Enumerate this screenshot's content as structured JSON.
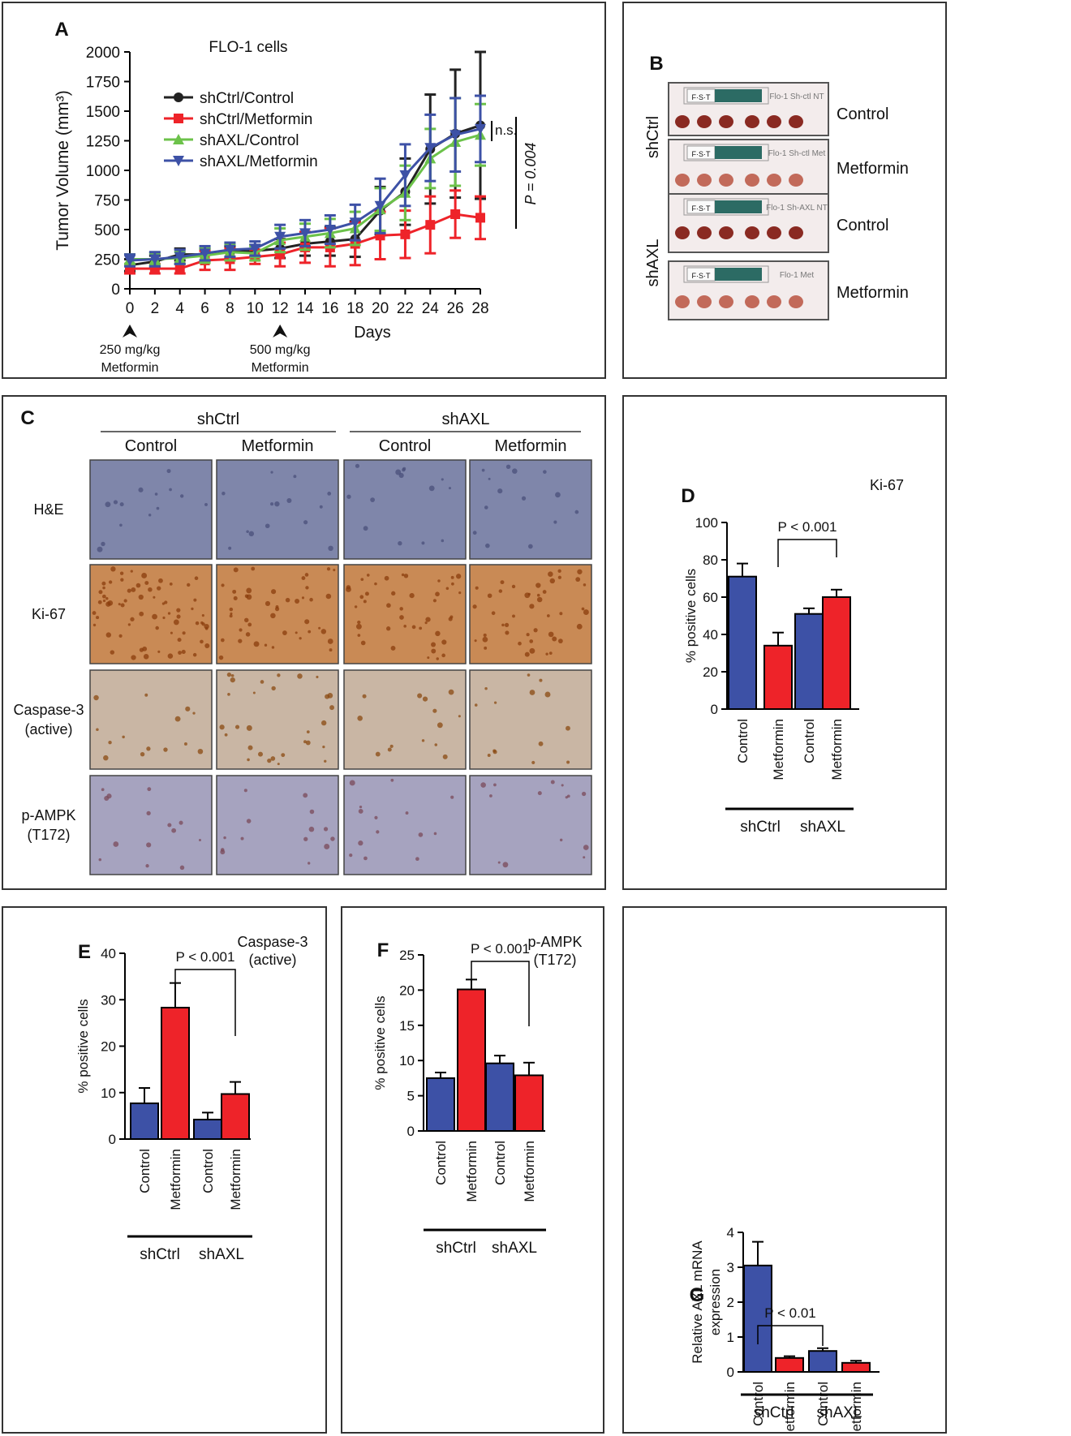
{
  "colors": {
    "blue": "#3d51a6",
    "red": "#ee2329",
    "green": "#6cc24a",
    "black": "#222222",
    "he_tissue": "#7f86aa",
    "ki_tissue": "#c98a55",
    "casp_tissue": "#c9b6a4",
    "ampk_tissue": "#a6a3bf"
  },
  "panel_a": {
    "letter": "A",
    "cell_line": "FLO-1 cells",
    "ns_label": "n.s.",
    "p_label": "P = 0.004",
    "dose1": [
      "250 mg/kg",
      "Metformin"
    ],
    "dose2": [
      "500 mg/kg",
      "Metformin"
    ],
    "dose1_day": 0,
    "dose2_day": 12
  },
  "panel_b": {
    "letter": "B",
    "group_labels": [
      "shCtrl",
      "shAXL"
    ],
    "row_labels": [
      "Control",
      "Metformin",
      "Control",
      "Metformin"
    ],
    "sticker_text": [
      "Flo-1 Sh-ctl NT",
      "Flo-1 Sh-ctl Met",
      "Flo-1 Sh-AXL NT",
      "Flo-1 Met"
    ],
    "ruler_text": [
      "F·S·T",
      "F·S·T",
      "F·S·T",
      "F·S·T"
    ],
    "tumor_counts": [
      6,
      6,
      6,
      6
    ]
  },
  "panel_c": {
    "letter": "C",
    "groups": [
      "shCtrl",
      "shAXL"
    ],
    "columns": [
      "Control",
      "Metformin",
      "Control",
      "Metformin"
    ],
    "stains": [
      "H&E",
      "Ki-67",
      "Caspase-3\n(active)",
      "p-AMPK\n(T172)"
    ]
  },
  "chart_data": [
    {
      "id": "A",
      "type": "line",
      "title": "FLO-1 cells",
      "xlabel": "Days",
      "ylabel": "Tumor Volume (mm³)",
      "xlim": [
        0,
        28
      ],
      "ylim": [
        0,
        2000
      ],
      "x": [
        0,
        2,
        4,
        6,
        8,
        10,
        12,
        14,
        16,
        18,
        20,
        22,
        24,
        26,
        28
      ],
      "yticks": [
        0,
        250,
        500,
        750,
        1000,
        1250,
        1500,
        1750,
        2000
      ],
      "series": [
        {
          "name": "shCtrl/Control",
          "color": "#222222",
          "marker": "circle",
          "values": [
            200,
            230,
            290,
            290,
            310,
            320,
            340,
            380,
            400,
            420,
            660,
            820,
            1180,
            1310,
            1380
          ],
          "errors": [
            50,
            50,
            50,
            50,
            50,
            50,
            80,
            100,
            120,
            150,
            200,
            280,
            460,
            540,
            620
          ]
        },
        {
          "name": "shCtrl/Metformin",
          "color": "#ee2329",
          "marker": "square",
          "values": [
            170,
            170,
            170,
            240,
            250,
            270,
            290,
            350,
            350,
            380,
            450,
            460,
            540,
            630,
            600
          ],
          "errors": [
            40,
            40,
            40,
            80,
            90,
            60,
            100,
            130,
            160,
            180,
            200,
            200,
            240,
            200,
            180
          ]
        },
        {
          "name": "shAXL/Control",
          "color": "#6cc24a",
          "marker": "triangle-up",
          "values": [
            250,
            250,
            260,
            280,
            310,
            300,
            410,
            440,
            470,
            510,
            670,
            810,
            1100,
            1240,
            1300
          ],
          "errors": [
            40,
            50,
            50,
            60,
            70,
            60,
            100,
            110,
            120,
            140,
            180,
            230,
            250,
            370,
            260
          ]
        },
        {
          "name": "shAXL/Metformin",
          "color": "#3d51a6",
          "marker": "triangle-down",
          "values": [
            240,
            250,
            270,
            300,
            330,
            340,
            440,
            470,
            500,
            560,
            700,
            960,
            1190,
            1300,
            1350
          ],
          "errors": [
            50,
            60,
            60,
            60,
            60,
            60,
            100,
            110,
            120,
            150,
            230,
            260,
            280,
            310,
            280
          ]
        }
      ]
    },
    {
      "id": "D",
      "type": "bar",
      "title": "Ki-67",
      "ylabel": "% positive cells",
      "ylim": [
        0,
        100
      ],
      "yticks": [
        0,
        20,
        40,
        60,
        80,
        100
      ],
      "categories": [
        "Control",
        "Metformin",
        "Control",
        "Metformin"
      ],
      "groups": [
        "shCtrl",
        "shAXL"
      ],
      "values": [
        71,
        34,
        51,
        60
      ],
      "errors": [
        7,
        7,
        3,
        4
      ],
      "bar_colors": [
        "#3d51a6",
        "#ee2329",
        "#3d51a6",
        "#ee2329"
      ],
      "significance": {
        "from": 1,
        "to": 3,
        "label": "P < 0.001"
      }
    },
    {
      "id": "E",
      "type": "bar",
      "title": "Caspase-3\n(active)",
      "ylabel": "% positive cells",
      "ylim": [
        0,
        40
      ],
      "yticks": [
        0,
        10,
        20,
        30,
        40
      ],
      "categories": [
        "Control",
        "Metformin",
        "Control",
        "Metformin"
      ],
      "groups": [
        "shCtrl",
        "shAXL"
      ],
      "values": [
        7.7,
        28.3,
        4.2,
        9.7
      ],
      "errors": [
        3.3,
        5.3,
        1.5,
        2.6
      ],
      "bar_colors": [
        "#3d51a6",
        "#ee2329",
        "#3d51a6",
        "#ee2329"
      ],
      "significance": {
        "from": 1,
        "to": 3,
        "label": "P < 0.001"
      }
    },
    {
      "id": "F",
      "type": "bar",
      "title": "p-AMPK\n(T172)",
      "ylabel": "% positive cells",
      "ylim": [
        0,
        25
      ],
      "yticks": [
        0,
        5,
        10,
        15,
        20,
        25
      ],
      "categories": [
        "Control",
        "Metformin",
        "Control",
        "Metformin"
      ],
      "groups": [
        "shCtrl",
        "shAXL"
      ],
      "values": [
        7.5,
        20.1,
        9.6,
        7.9
      ],
      "errors": [
        0.8,
        1.4,
        1.1,
        1.8
      ],
      "bar_colors": [
        "#3d51a6",
        "#ee2329",
        "#3d51a6",
        "#ee2329"
      ],
      "significance": {
        "from": 1,
        "to": 3,
        "label": "P < 0.001"
      }
    },
    {
      "id": "G",
      "type": "bar",
      "title": "",
      "ylabel": "Relative AXL mRNA\nexpression",
      "ylim": [
        0,
        4
      ],
      "yticks": [
        0,
        1,
        2,
        3,
        4
      ],
      "categories": [
        "Control",
        "Metformin",
        "Control",
        "Metformin"
      ],
      "groups": [
        "shCtrl",
        "shAXL"
      ],
      "values": [
        3.05,
        0.4,
        0.6,
        0.26
      ],
      "errors": [
        0.68,
        0.05,
        0.08,
        0.06
      ],
      "bar_colors": [
        "#3d51a6",
        "#ee2329",
        "#3d51a6",
        "#ee2329"
      ],
      "significance": {
        "from": 0,
        "to": 2,
        "label": "P < 0.01"
      }
    }
  ]
}
